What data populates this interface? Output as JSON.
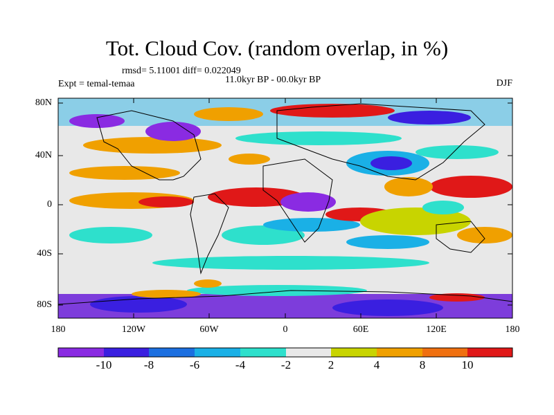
{
  "title": "Tot. Cloud Cov. (random overlap, in %)",
  "stats_text": "rmsd= 5.11001 diff= 0.022049",
  "experiment_text": "Expt = temal-temaa",
  "period_text": "11.0kyr BP - 00.0kyr BP",
  "season": "DJF",
  "axes": {
    "y_ticks": [
      "80N",
      "40N",
      "0",
      "40S",
      "80S"
    ],
    "x_ticks": [
      "180",
      "120W",
      "60W",
      "0",
      "60E",
      "120E",
      "180"
    ]
  },
  "colorbar": {
    "tick_labels": [
      "-10",
      "-8",
      "-6",
      "-4",
      "-2",
      "2",
      "4",
      "8",
      "10"
    ],
    "colors": [
      "#8a2be2",
      "#3a1fe0",
      "#1c6fe0",
      "#1ab0e6",
      "#2ee0cc",
      "#e8e8e8",
      "#c8d400",
      "#f0a000",
      "#f07010",
      "#e01818"
    ]
  }
}
